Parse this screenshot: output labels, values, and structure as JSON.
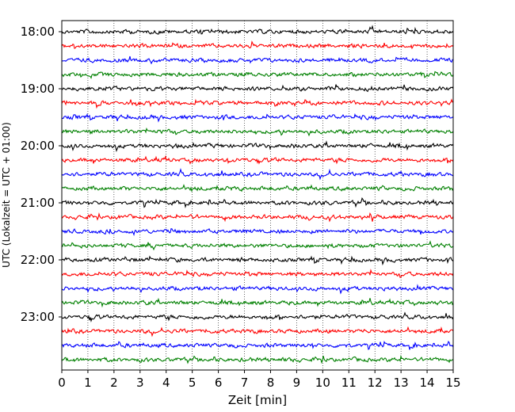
{
  "chart_data": {
    "type": "line",
    "xlabel": "Zeit  [min]",
    "ylabel": "UTC (Lokalzeit = UTC + 01:00)",
    "xlim": [
      0,
      15
    ],
    "x_ticks": [
      "0",
      "1",
      "2",
      "3",
      "4",
      "5",
      "6",
      "7",
      "8",
      "9",
      "10",
      "11",
      "12",
      "13",
      "14",
      "15"
    ],
    "y_ticks": [
      "18:00",
      "19:00",
      "20:00",
      "21:00",
      "22:00",
      "23:00"
    ],
    "grid": "vertical dotted lines at each minute",
    "traces_per_hour": 4,
    "minutes_per_trace": 15,
    "trace_colors": [
      "#000000",
      "#ff0000",
      "#0000ff",
      "#008000"
    ],
    "trace_count": 24,
    "start_time": "18:00",
    "end_time": "24:00"
  }
}
